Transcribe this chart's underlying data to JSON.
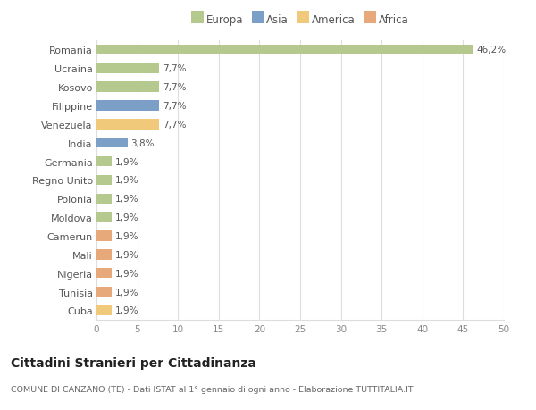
{
  "categories": [
    "Romania",
    "Ucraina",
    "Kosovo",
    "Filippine",
    "Venezuela",
    "India",
    "Germania",
    "Regno Unito",
    "Polonia",
    "Moldova",
    "Camerun",
    "Mali",
    "Nigeria",
    "Tunisia",
    "Cuba"
  ],
  "values": [
    46.2,
    7.7,
    7.7,
    7.7,
    7.7,
    3.8,
    1.9,
    1.9,
    1.9,
    1.9,
    1.9,
    1.9,
    1.9,
    1.9,
    1.9
  ],
  "labels": [
    "46,2%",
    "7,7%",
    "7,7%",
    "7,7%",
    "7,7%",
    "3,8%",
    "1,9%",
    "1,9%",
    "1,9%",
    "1,9%",
    "1,9%",
    "1,9%",
    "1,9%",
    "1,9%",
    "1,9%"
  ],
  "colors": [
    "#b5c98e",
    "#b5c98e",
    "#b5c98e",
    "#7b9fc7",
    "#f0c97b",
    "#7b9fc7",
    "#b5c98e",
    "#b5c98e",
    "#b5c98e",
    "#b5c98e",
    "#e8a97a",
    "#e8a97a",
    "#e8a97a",
    "#e8a97a",
    "#f0c97b"
  ],
  "legend_labels": [
    "Europa",
    "Asia",
    "America",
    "Africa"
  ],
  "legend_colors": [
    "#b5c98e",
    "#7b9fc7",
    "#f0c97b",
    "#e8a97a"
  ],
  "title": "Cittadini Stranieri per Cittadinanza",
  "subtitle": "COMUNE DI CANZANO (TE) - Dati ISTAT al 1° gennaio di ogni anno - Elaborazione TUTTITALIA.IT",
  "xlim": [
    0,
    50
  ],
  "xticks": [
    0,
    5,
    10,
    15,
    20,
    25,
    30,
    35,
    40,
    45,
    50
  ],
  "background_color": "#ffffff",
  "grid_color": "#dddddd"
}
